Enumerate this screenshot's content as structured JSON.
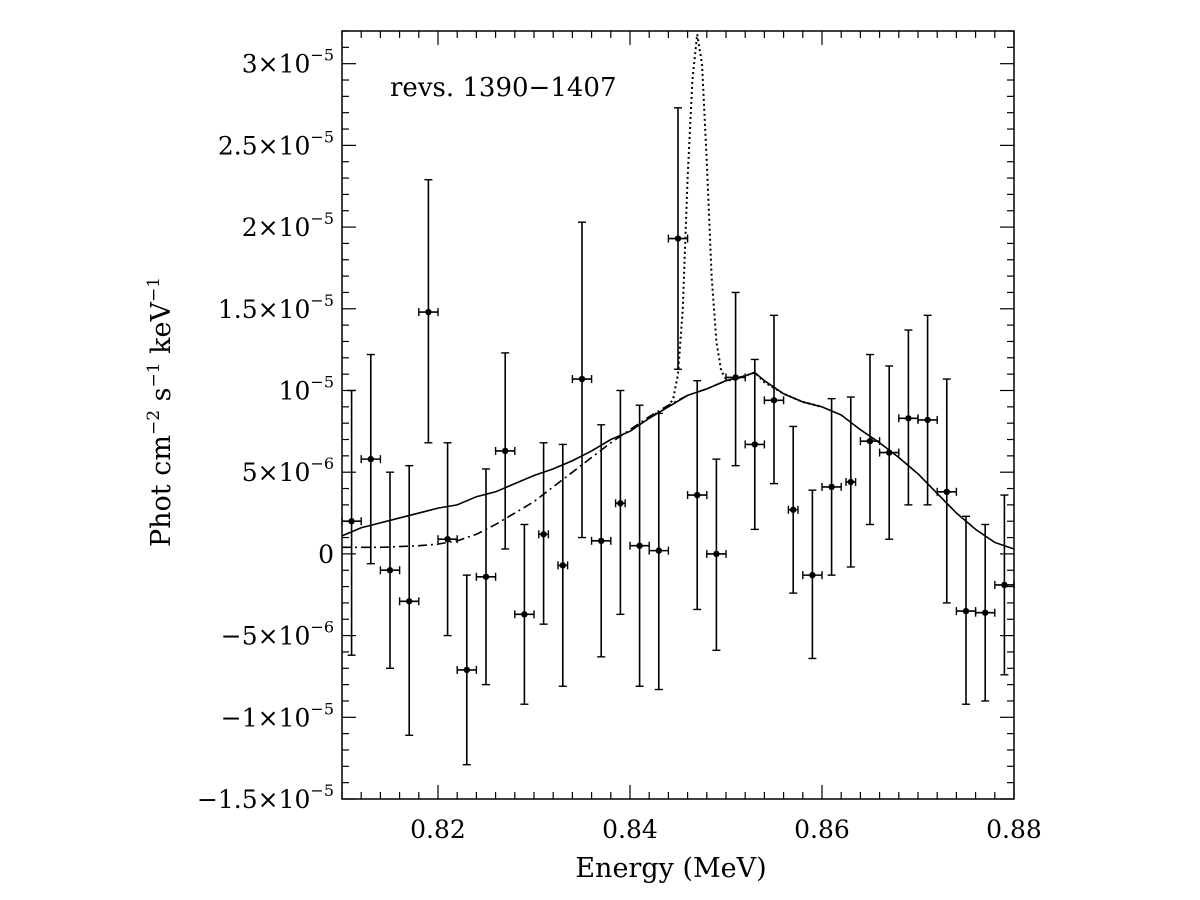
{
  "chart_data": {
    "type": "scatter",
    "title": "",
    "xlabel": "Energy (MeV)",
    "ylabel_parts": {
      "a": "Phot cm",
      "b": "−2",
      "c": " s",
      "d": "−1",
      "e": " keV",
      "f": "−1"
    },
    "annotation": "revs. 1390−1407",
    "xlim": [
      0.81,
      0.88
    ],
    "ylim": [
      -1.5e-05,
      3.2e-05
    ],
    "grid": false,
    "x_ticks": [
      {
        "value": 0.82,
        "label": "0.82"
      },
      {
        "value": 0.84,
        "label": "0.84"
      },
      {
        "value": 0.86,
        "label": "0.86"
      },
      {
        "value": 0.88,
        "label": "0.88"
      }
    ],
    "y_ticks": [
      {
        "value": 3e-05,
        "mant": "3×10",
        "exp": "−5"
      },
      {
        "value": 2.5e-05,
        "mant": "2.5×10",
        "exp": "−5"
      },
      {
        "value": 2e-05,
        "mant": "2×10",
        "exp": "−5"
      },
      {
        "value": 1.5e-05,
        "mant": "1.5×10",
        "exp": "−5"
      },
      {
        "value": 1e-05,
        "mant": "10",
        "exp": "−5"
      },
      {
        "value": 5e-06,
        "mant": "5×10",
        "exp": "−6"
      },
      {
        "value": 0,
        "mant": "0",
        "exp": ""
      },
      {
        "value": -5e-06,
        "mant": "−5×10",
        "exp": "−6"
      },
      {
        "value": -1e-05,
        "mant": "−1×10",
        "exp": "−5"
      },
      {
        "value": -1.5e-05,
        "mant": "−1.5×10",
        "exp": "−5"
      }
    ],
    "points": [
      {
        "x": 0.811,
        "y": 2e-06,
        "xerr": 0.001,
        "ylo": -6.2e-06,
        "yhi": 1e-05
      },
      {
        "x": 0.813,
        "y": 5.8e-06,
        "xerr": 0.001,
        "ylo": -6e-07,
        "yhi": 1.22e-05
      },
      {
        "x": 0.815,
        "y": -1e-06,
        "xerr": 0.001,
        "ylo": -7e-06,
        "yhi": 5e-06
      },
      {
        "x": 0.817,
        "y": -2.9e-06,
        "xerr": 0.001,
        "ylo": -1.11e-05,
        "yhi": 5.4e-06
      },
      {
        "x": 0.819,
        "y": 1.48e-05,
        "xerr": 0.001,
        "ylo": 6.8e-06,
        "yhi": 2.29e-05
      },
      {
        "x": 0.821,
        "y": 9e-07,
        "xerr": 0.001,
        "ylo": -5e-06,
        "yhi": 6.8e-06
      },
      {
        "x": 0.823,
        "y": -7.1e-06,
        "xerr": 0.001,
        "ylo": -1.29e-05,
        "yhi": -1.3e-06
      },
      {
        "x": 0.825,
        "y": -1.4e-06,
        "xerr": 0.001,
        "ylo": -8e-06,
        "yhi": 5.2e-06
      },
      {
        "x": 0.827,
        "y": 6.3e-06,
        "xerr": 0.001,
        "ylo": 3e-07,
        "yhi": 1.23e-05
      },
      {
        "x": 0.829,
        "y": -3.7e-06,
        "xerr": 0.001,
        "ylo": -9.2e-06,
        "yhi": 1.8e-06
      },
      {
        "x": 0.831,
        "y": 1.2e-06,
        "xerr": 0.0005,
        "ylo": -4.3e-06,
        "yhi": 6.8e-06
      },
      {
        "x": 0.833,
        "y": -7e-07,
        "xerr": 0.0005,
        "ylo": -8.1e-06,
        "yhi": 6.7e-06
      },
      {
        "x": 0.835,
        "y": 1.07e-05,
        "xerr": 0.001,
        "ylo": 1e-06,
        "yhi": 2.03e-05
      },
      {
        "x": 0.837,
        "y": 8e-07,
        "xerr": 0.001,
        "ylo": -6.3e-06,
        "yhi": 7.9e-06
      },
      {
        "x": 0.839,
        "y": 3.1e-06,
        "xerr": 0.0005,
        "ylo": -3.7e-06,
        "yhi": 1e-05
      },
      {
        "x": 0.841,
        "y": 5e-07,
        "xerr": 0.001,
        "ylo": -8.1e-06,
        "yhi": 9.1e-06
      },
      {
        "x": 0.843,
        "y": 2e-07,
        "xerr": 0.001,
        "ylo": -8.3e-06,
        "yhi": 8.6e-06
      },
      {
        "x": 0.845,
        "y": 1.93e-05,
        "xerr": 0.001,
        "ylo": 1.13e-05,
        "yhi": 2.73e-05
      },
      {
        "x": 0.847,
        "y": 3.6e-06,
        "xerr": 0.001,
        "ylo": -3.4e-06,
        "yhi": 1.06e-05
      },
      {
        "x": 0.849,
        "y": 0,
        "xerr": 0.001,
        "ylo": -5.9e-06,
        "yhi": 5.8e-06
      },
      {
        "x": 0.851,
        "y": 1.08e-05,
        "xerr": 0.001,
        "ylo": 5.4e-06,
        "yhi": 1.6e-05
      },
      {
        "x": 0.853,
        "y": 6.7e-06,
        "xerr": 0.001,
        "ylo": 1.5e-06,
        "yhi": 1.19e-05
      },
      {
        "x": 0.855,
        "y": 9.4e-06,
        "xerr": 0.001,
        "ylo": 4.3e-06,
        "yhi": 1.46e-05
      },
      {
        "x": 0.857,
        "y": 2.7e-06,
        "xerr": 0.0005,
        "ylo": -2.4e-06,
        "yhi": 7.8e-06
      },
      {
        "x": 0.859,
        "y": -1.3e-06,
        "xerr": 0.001,
        "ylo": -6.4e-06,
        "yhi": 3.9e-06
      },
      {
        "x": 0.861,
        "y": 4.1e-06,
        "xerr": 0.001,
        "ylo": -1.3e-06,
        "yhi": 9.5e-06
      },
      {
        "x": 0.863,
        "y": 4.4e-06,
        "xerr": 0.0005,
        "ylo": -8e-07,
        "yhi": 9.6e-06
      },
      {
        "x": 0.865,
        "y": 6.9e-06,
        "xerr": 0.001,
        "ylo": 1.8e-06,
        "yhi": 1.22e-05
      },
      {
        "x": 0.867,
        "y": 6.2e-06,
        "xerr": 0.001,
        "ylo": 9e-07,
        "yhi": 1.15e-05
      },
      {
        "x": 0.869,
        "y": 8.3e-06,
        "xerr": 0.001,
        "ylo": 3e-06,
        "yhi": 1.37e-05
      },
      {
        "x": 0.871,
        "y": 8.2e-06,
        "xerr": 0.001,
        "ylo": 3e-06,
        "yhi": 1.46e-05
      },
      {
        "x": 0.873,
        "y": 3.8e-06,
        "xerr": 0.001,
        "ylo": -3e-06,
        "yhi": 1.07e-05
      },
      {
        "x": 0.875,
        "y": -3.5e-06,
        "xerr": 0.001,
        "ylo": -9.2e-06,
        "yhi": 2.3e-06
      },
      {
        "x": 0.877,
        "y": -3.6e-06,
        "xerr": 0.001,
        "ylo": -9e-06,
        "yhi": 1.8e-06
      },
      {
        "x": 0.879,
        "y": -1.9e-06,
        "xerr": 0.001,
        "ylo": -7.4e-06,
        "yhi": 3.6e-06
      }
    ],
    "curves": [
      {
        "style": "solid",
        "x": [
          0.81,
          0.812,
          0.814,
          0.816,
          0.818,
          0.82,
          0.822,
          0.824,
          0.826,
          0.828,
          0.83,
          0.832,
          0.834,
          0.836,
          0.838,
          0.84,
          0.842,
          0.844,
          0.846,
          0.848,
          0.85,
          0.852,
          0.853,
          0.854,
          0.856,
          0.858,
          0.86,
          0.862,
          0.864,
          0.866,
          0.868,
          0.87,
          0.872,
          0.874,
          0.876,
          0.878,
          0.88
        ],
        "y": [
          1.1e-06,
          1.6e-06,
          1.9e-06,
          2.2e-06,
          2.5e-06,
          2.8e-06,
          3e-06,
          3.5e-06,
          3.8e-06,
          4.3e-06,
          4.8e-06,
          5.2e-06,
          5.7e-06,
          6.3e-06,
          7e-06,
          7.5e-06,
          8.3e-06,
          9e-06,
          9.7e-06,
          1.01e-05,
          1.06e-05,
          1.09e-05,
          1.11e-05,
          1.06e-05,
          9.8e-06,
          9.3e-06,
          9e-06,
          8.5e-06,
          7.6e-06,
          6.8e-06,
          5.9e-06,
          4.9e-06,
          3.7e-06,
          2.5e-06,
          1.5e-06,
          7e-07,
          3e-07
        ]
      },
      {
        "style": "dashdot",
        "x": [
          0.81,
          0.814,
          0.818,
          0.82,
          0.822,
          0.824,
          0.826,
          0.828,
          0.83,
          0.832,
          0.834,
          0.836,
          0.838,
          0.84,
          0.842,
          0.844,
          0.846,
          0.848,
          0.85,
          0.852,
          0.853
        ],
        "y": [
          4e-07,
          4e-07,
          5e-07,
          6e-07,
          8e-07,
          1.2e-06,
          1.8e-06,
          2.5e-06,
          3.2e-06,
          4.1e-06,
          5e-06,
          5.9e-06,
          6.8e-06,
          7.6e-06,
          8.4e-06,
          9.1e-06,
          9.7e-06,
          1.01e-05,
          1.06e-05,
          1.09e-05,
          1.11e-05
        ]
      },
      {
        "style": "dotted",
        "x": [
          0.844,
          0.8445,
          0.845,
          0.8455,
          0.846,
          0.8465,
          0.847,
          0.8475,
          0.848,
          0.8485,
          0.849,
          0.8495,
          0.85,
          0.8505,
          0.851,
          0.852,
          0.853,
          0.854,
          0.856,
          0.858,
          0.86
        ],
        "y": [
          9e-06,
          9.5e-06,
          1.1e-05,
          1.5e-05,
          2.3e-05,
          2.9e-05,
          3.18e-05,
          3e-05,
          2.4e-05,
          1.7e-05,
          1.3e-05,
          1.12e-05,
          1.07e-05,
          1.06e-05,
          1.07e-05,
          1.09e-05,
          1.11e-05,
          1.05e-05,
          9.8e-06,
          9.3e-06,
          9e-06
        ]
      }
    ]
  }
}
